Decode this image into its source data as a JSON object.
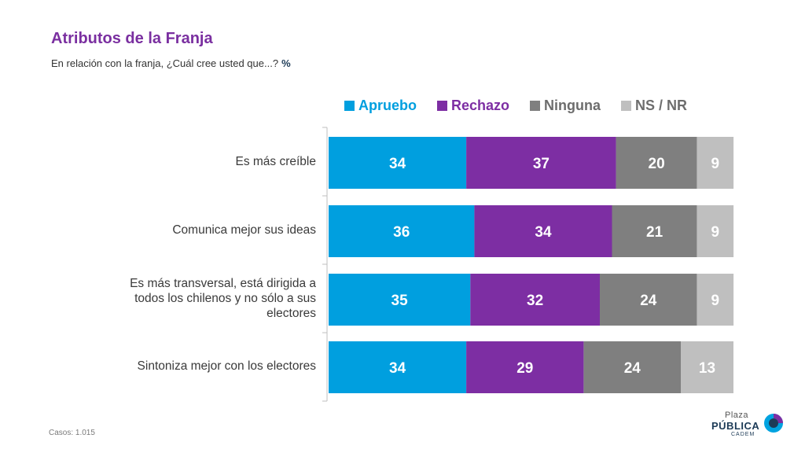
{
  "header": {
    "title": "Atributos de la Franja",
    "subtitle": "En relación con la franja, ¿Cuál cree usted que...?",
    "subtitle_unit": "%"
  },
  "colors": {
    "apruebo": "#009fdf",
    "rechazo": "#7d2ea3",
    "ninguna": "#7f7f7f",
    "nsnr": "#bfbfbf",
    "legend_text": "#6d6d6d"
  },
  "chart_data": {
    "type": "bar",
    "orientation": "horizontal",
    "stacked": true,
    "categories": [
      "Es más creíble",
      "Comunica mejor sus ideas",
      "Es más transversal, está dirigida a todos los chilenos y no sólo a sus electores",
      "Sintoniza mejor con los electores"
    ],
    "category_lines": [
      [
        "Es más creíble"
      ],
      [
        "Comunica mejor sus ideas"
      ],
      [
        "Es más transversal, está dirigida a",
        "todos los chilenos y no sólo a sus",
        "electores"
      ],
      [
        "Sintoniza mejor con los electores"
      ]
    ],
    "series": [
      {
        "name": "Apruebo",
        "values": [
          34,
          36,
          35,
          34
        ]
      },
      {
        "name": "Rechazo",
        "values": [
          37,
          34,
          32,
          29
        ]
      },
      {
        "name": "Ninguna",
        "values": [
          20,
          21,
          24,
          24
        ]
      },
      {
        "name": "NS / NR",
        "values": [
          9,
          9,
          9,
          13
        ]
      }
    ],
    "xlim": [
      0,
      100
    ],
    "legend_position": "top",
    "grid": false,
    "data_labels": true
  },
  "legend": {
    "items": [
      "Apruebo",
      "Rechazo",
      "Ninguna",
      "NS / NR"
    ]
  },
  "footer": {
    "cases": "Casos: 1.015"
  },
  "logo": {
    "line1": "Plaza",
    "line2": "PÚBLICA",
    "line3": "CADEM"
  }
}
